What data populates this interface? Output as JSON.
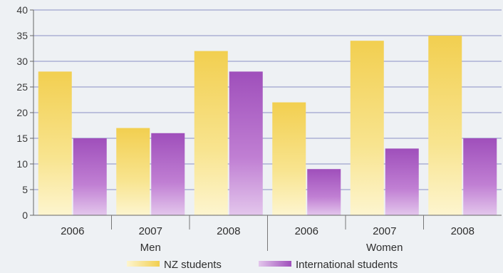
{
  "chart_data": {
    "type": "bar",
    "groups": [
      {
        "label": "Men",
        "categories": [
          "2006",
          "2007",
          "2008"
        ]
      },
      {
        "label": "Women",
        "categories": [
          "2006",
          "2007",
          "2008"
        ]
      }
    ],
    "categories": [
      "2006",
      "2007",
      "2008",
      "2006",
      "2007",
      "2008"
    ],
    "series": [
      {
        "name": "NZ students",
        "values": [
          28,
          17,
          32,
          22,
          34,
          35
        ],
        "color": "#f3d35c"
      },
      {
        "name": "International students",
        "values": [
          15,
          16,
          28,
          9,
          13,
          15
        ],
        "color": "#a85ac2"
      }
    ],
    "ylim": [
      0,
      40
    ],
    "yticks": [
      0,
      5,
      10,
      15,
      20,
      25,
      30,
      35,
      40
    ],
    "grid": true,
    "legend": "bottom",
    "title": "",
    "xlabel": "",
    "ylabel": "",
    "colors": {
      "gridline": "#8a8fc4",
      "background": "#eef1f4"
    }
  }
}
